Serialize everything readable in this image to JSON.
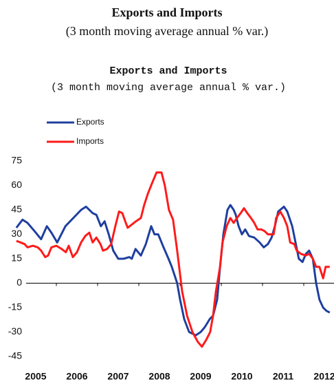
{
  "header": {
    "title": "Exports and Imports",
    "subtitle": "(3 month moving average annual % var.)"
  },
  "chart_data": {
    "type": "line",
    "title": "Exports and Imports",
    "subtitle": "(3 month moving average annual % var.)",
    "xlim": [
      2005,
      2012.7
    ],
    "xticks": [
      {
        "value": 2005.5,
        "label": "2005"
      },
      {
        "value": 2006.5,
        "label": "2006"
      },
      {
        "value": 2007.5,
        "label": "2007"
      },
      {
        "value": 2008.5,
        "label": "2008"
      },
      {
        "value": 2009.5,
        "label": "2009"
      },
      {
        "value": 2010.5,
        "label": "2010"
      },
      {
        "value": 2011.5,
        "label": "2011"
      },
      {
        "value": 2012.5,
        "label": "2012"
      }
    ],
    "ylim": [
      -45,
      75
    ],
    "yticks": [
      -45,
      -30,
      -15,
      0,
      15,
      30,
      45,
      60,
      75
    ],
    "legend": "top-left",
    "series": [
      {
        "name": "Exports",
        "color": "#1f3f9e",
        "x": [
          2005.03,
          2005.18,
          2005.3,
          2005.47,
          2005.63,
          2005.77,
          2005.88,
          2006.02,
          2006.22,
          2006.6,
          2006.72,
          2006.88,
          2006.97,
          2007.08,
          2007.17,
          2007.27,
          2007.38,
          2007.5,
          2007.63,
          2007.77,
          2007.83,
          2007.92,
          2008.05,
          2008.17,
          2008.3,
          2008.38,
          2008.47,
          2008.6,
          2008.72,
          2008.8,
          2008.93,
          2009.0,
          2009.1,
          2009.22,
          2009.38,
          2009.5,
          2009.6,
          2009.72,
          2009.8,
          2009.9,
          2009.97,
          2010.05,
          2010.15,
          2010.22,
          2010.3,
          2010.35,
          2010.42,
          2010.5,
          2010.58,
          2010.67,
          2010.8,
          2010.93,
          2011.03,
          2011.13,
          2011.22,
          2011.3,
          2011.38,
          2011.52,
          2011.6,
          2011.72,
          2011.8,
          2011.88,
          2011.97,
          2012.05,
          2012.13,
          2012.22,
          2012.3,
          2012.38,
          2012.47,
          2012.55,
          2012.63
        ],
        "values": [
          34,
          39,
          37,
          32,
          27,
          35,
          31,
          25,
          35,
          45,
          47,
          43,
          42,
          35,
          38,
          30,
          20,
          15,
          15,
          16,
          15,
          21,
          17,
          24,
          35,
          30,
          30,
          22,
          15,
          10,
          0,
          -10,
          -22,
          -30,
          -32,
          -30,
          -27,
          -22,
          -20,
          -10,
          10,
          30,
          45,
          48,
          45,
          42,
          35,
          30,
          33,
          29,
          28,
          25,
          22,
          24,
          28,
          35,
          44,
          47,
          44,
          35,
          25,
          15,
          13,
          18,
          20,
          15,
          0,
          -10,
          -15,
          -17,
          -18
        ]
      },
      {
        "name": "Imports",
        "color": "#ff1a1a",
        "x": [
          2005.03,
          2005.13,
          2005.23,
          2005.3,
          2005.43,
          2005.55,
          2005.63,
          2005.73,
          2005.8,
          2005.88,
          2006.0,
          2006.13,
          2006.23,
          2006.3,
          2006.4,
          2006.5,
          2006.6,
          2006.7,
          2006.8,
          2006.88,
          2006.97,
          2007.07,
          2007.13,
          2007.23,
          2007.33,
          2007.43,
          2007.52,
          2007.6,
          2007.67,
          2007.73,
          2007.83,
          2007.93,
          2008.05,
          2008.13,
          2008.22,
          2008.33,
          2008.43,
          2008.55,
          2008.63,
          2008.73,
          2008.83,
          2008.93,
          2009.05,
          2009.17,
          2009.3,
          2009.43,
          2009.53,
          2009.63,
          2009.73,
          2009.8,
          2009.87,
          2009.97,
          2010.03,
          2010.13,
          2010.22,
          2010.3,
          2010.38,
          2010.47,
          2010.55,
          2010.63,
          2010.72,
          2010.8,
          2010.88,
          2010.97,
          2011.05,
          2011.13,
          2011.27,
          2011.33,
          2011.43,
          2011.52,
          2011.6,
          2011.67,
          2011.77,
          2011.83,
          2011.93,
          2012.05,
          2012.13,
          2012.22,
          2012.3,
          2012.38,
          2012.47,
          2012.53,
          2012.63
        ],
        "values": [
          26,
          25,
          24,
          22,
          23,
          22,
          20,
          16,
          17,
          22,
          23,
          21,
          19,
          23,
          16,
          19,
          25,
          29,
          31,
          25,
          28,
          24,
          20,
          21,
          24,
          35,
          44,
          43,
          38,
          34,
          36,
          38,
          40,
          48,
          55,
          62,
          68,
          68,
          60,
          45,
          39,
          20,
          -5,
          -20,
          -30,
          -36,
          -39,
          -35,
          -30,
          -20,
          -5,
          10,
          25,
          35,
          40,
          37,
          40,
          43,
          46,
          43,
          40,
          37,
          33,
          33,
          32,
          30,
          30,
          40,
          44,
          40,
          35,
          25,
          24,
          20,
          18,
          17,
          18,
          15,
          10,
          10,
          3,
          10,
          10
        ]
      }
    ]
  }
}
